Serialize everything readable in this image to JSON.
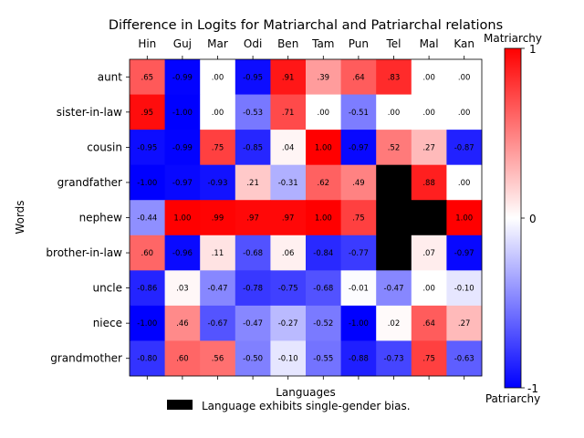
{
  "chart_data": {
    "type": "heatmap",
    "title": "Difference in Logits for Matriarchal and Patriarchal relations",
    "xlabel": "Languages",
    "ylabel": "Words",
    "x_categories": [
      "Hin",
      "Guj",
      "Mar",
      "Odi",
      "Ben",
      "Tam",
      "Pun",
      "Tel",
      "Mal",
      "Kan"
    ],
    "y_categories": [
      "aunt",
      "sister-in-law",
      "cousin",
      "grandfather",
      "nephew",
      "brother-in-law",
      "uncle",
      "niece",
      "grandmother"
    ],
    "values": [
      [
        0.65,
        -0.99,
        0.0,
        -0.95,
        0.91,
        0.39,
        0.64,
        0.83,
        0.0,
        0.0
      ],
      [
        0.95,
        -1.0,
        0.0,
        -0.53,
        0.71,
        0.0,
        -0.51,
        0.0,
        0.0,
        0.0
      ],
      [
        -0.95,
        -0.99,
        0.75,
        -0.85,
        0.04,
        1.0,
        -0.97,
        0.52,
        0.27,
        -0.87
      ],
      [
        -1.0,
        -0.97,
        -0.93,
        0.21,
        -0.31,
        0.62,
        0.49,
        null,
        0.88,
        0.0
      ],
      [
        -0.44,
        1.0,
        0.99,
        0.97,
        0.97,
        1.0,
        0.75,
        null,
        null,
        1.0
      ],
      [
        0.6,
        -0.96,
        0.11,
        -0.68,
        0.06,
        -0.84,
        -0.77,
        null,
        0.07,
        -0.97
      ],
      [
        -0.86,
        0.03,
        -0.47,
        -0.78,
        -0.75,
        -0.68,
        -0.01,
        -0.47,
        0.0,
        -0.1
      ],
      [
        -1.0,
        0.46,
        -0.67,
        -0.47,
        -0.27,
        -0.52,
        -1.0,
        0.02,
        0.64,
        0.27
      ],
      [
        -0.8,
        0.6,
        0.56,
        -0.5,
        -0.1,
        -0.55,
        -0.88,
        -0.73,
        0.75,
        -0.63
      ]
    ],
    "labels": [
      [
        ".65",
        "-0.99",
        ".00",
        "-0.95",
        ".91",
        ".39",
        ".64",
        ".83",
        ".00",
        ".00"
      ],
      [
        ".95",
        "-1.00",
        ".00",
        "-0.53",
        ".71",
        ".00",
        "-0.51",
        ".00",
        ".00",
        ".00"
      ],
      [
        "-0.95",
        "-0.99",
        ".75",
        "-0.85",
        ".04",
        "1.00",
        "-0.97",
        ".52",
        ".27",
        "-0.87"
      ],
      [
        "-1.00",
        "-0.97",
        "-0.93",
        ".21",
        "-0.31",
        ".62",
        ".49",
        "",
        ".88",
        ".00"
      ],
      [
        "-0.44",
        "1.00",
        ".99",
        ".97",
        ".97",
        "1.00",
        ".75",
        "",
        "",
        "1.00"
      ],
      [
        ".60",
        "-0.96",
        ".11",
        "-0.68",
        ".06",
        "-0.84",
        "-0.77",
        "",
        ".07",
        "-0.97"
      ],
      [
        "-0.86",
        ".03",
        "-0.47",
        "-0.78",
        "-0.75",
        "-0.68",
        "-0.01",
        "-0.47",
        ".00",
        "-0.10"
      ],
      [
        "-1.00",
        ".46",
        "-0.67",
        "-0.47",
        "-0.27",
        "-0.52",
        "-1.00",
        ".02",
        ".64",
        ".27"
      ],
      [
        "-0.80",
        ".60",
        ".56",
        "-0.50",
        "-0.10",
        "-0.55",
        "-0.88",
        "-0.73",
        ".75",
        "-0.63"
      ]
    ],
    "colormap": "bwr",
    "vmin": -1,
    "vmax": 1,
    "bias_color": "#000000",
    "colorbar": {
      "ticks": [
        "-1",
        "0",
        "1"
      ],
      "top_label": "Matriarchy",
      "bottom_label": "Patriarchy"
    },
    "legend": {
      "position": "bottom",
      "label": "Language exhibits single-gender bias.",
      "color": "#000000"
    }
  }
}
